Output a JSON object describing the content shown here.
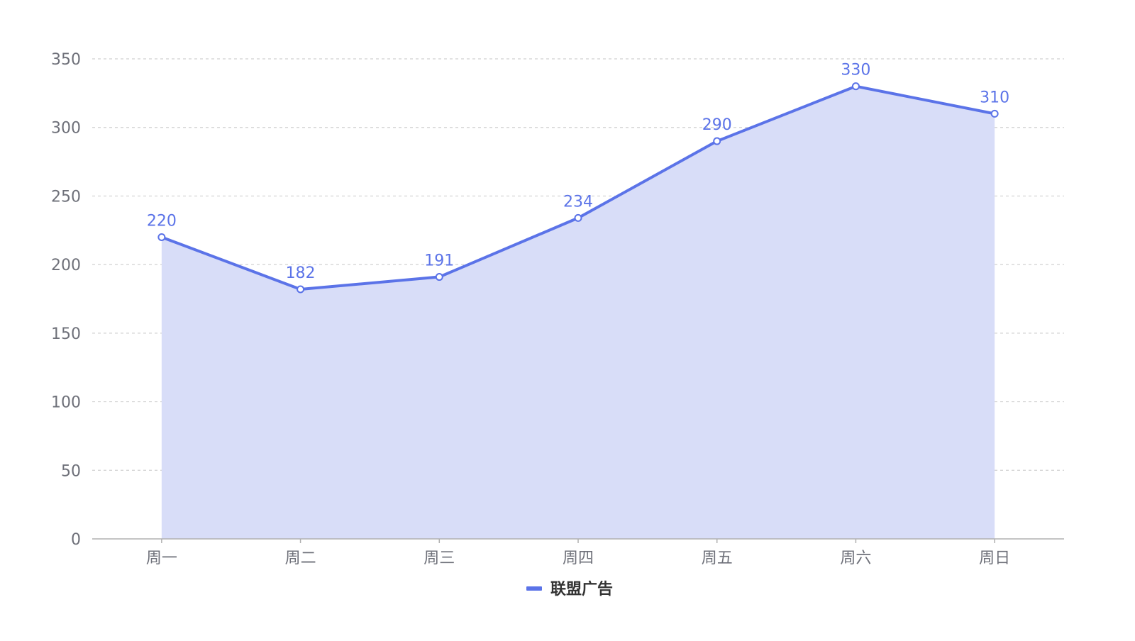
{
  "chart_data": {
    "type": "area",
    "categories": [
      "周一",
      "周二",
      "周三",
      "周四",
      "周五",
      "周六",
      "周日"
    ],
    "series": [
      {
        "name": "联盟广告",
        "values": [
          220,
          182,
          191,
          234,
          290,
          330,
          310
        ]
      }
    ],
    "ylim": [
      0,
      350
    ],
    "yticks": [
      0,
      50,
      100,
      150,
      200,
      250,
      300,
      350
    ],
    "grid": true,
    "grid_style": "dashed",
    "legend_position": "bottom-center",
    "data_labels": true,
    "colors": {
      "line": "#5b73e8",
      "area": "#d8ddf8",
      "grid": "#d0d0d0",
      "axis": "#b0b0b0",
      "tick_text": "#6e7079"
    }
  }
}
